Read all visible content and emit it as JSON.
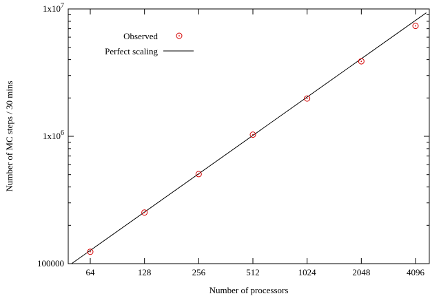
{
  "chart_data": {
    "type": "scatter",
    "xlabel": "Number of processors",
    "ylabel": "Number of MC steps / 30 mins",
    "x_scale": "log2",
    "y_scale": "log10",
    "x_ticks": [
      64,
      128,
      256,
      512,
      1024,
      2048,
      4096
    ],
    "x_tick_labels": [
      "64",
      "128",
      "256",
      "512",
      "1024",
      "2048",
      "4096"
    ],
    "y_ticks": [
      100000,
      1000000,
      10000000
    ],
    "y_tick_labels": [
      {
        "base": "100000",
        "exp": ""
      },
      {
        "base": "1x10",
        "exp": "6"
      },
      {
        "base": "1x10",
        "exp": "7"
      }
    ],
    "ylim": [
      100000,
      10000000
    ],
    "legend_position": "top-left",
    "series": [
      {
        "name": "Observed",
        "kind": "points",
        "color": "#d40000",
        "marker": "open-circle-dot",
        "x": [
          64,
          128,
          256,
          512,
          1024,
          2048,
          4096
        ],
        "y": [
          124000,
          252000,
          505000,
          1030000,
          1980000,
          3880000,
          7360000
        ]
      },
      {
        "name": "Perfect scaling",
        "kind": "line",
        "color": "#000000",
        "x": [
          50,
          4700
        ],
        "y": [
          99200,
          9330000
        ]
      }
    ]
  }
}
